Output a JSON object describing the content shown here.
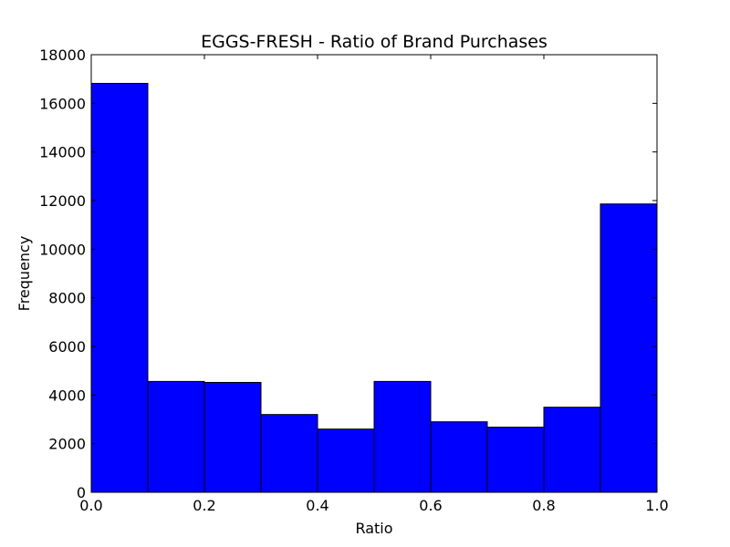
{
  "chart_data": {
    "type": "bar",
    "title": "EGGS-FRESH - Ratio of Brand Purchases",
    "xlabel": "Ratio",
    "ylabel": "Frequency",
    "xlim": [
      0.0,
      1.0
    ],
    "ylim": [
      0,
      18000
    ],
    "bin_edges": [
      0.0,
      0.1,
      0.2,
      0.3,
      0.4,
      0.5,
      0.6,
      0.7,
      0.8,
      0.9,
      1.0
    ],
    "values": [
      16820,
      4560,
      4520,
      3200,
      2600,
      4560,
      2900,
      2680,
      3500,
      11860
    ],
    "xticks": [
      "0.0",
      "0.2",
      "0.4",
      "0.6",
      "0.8",
      "1.0"
    ],
    "yticks": [
      "0",
      "2000",
      "4000",
      "6000",
      "8000",
      "10000",
      "12000",
      "14000",
      "16000",
      "18000"
    ],
    "grid": false,
    "bar_color": "#0000ff",
    "edge_color": "#000000"
  }
}
